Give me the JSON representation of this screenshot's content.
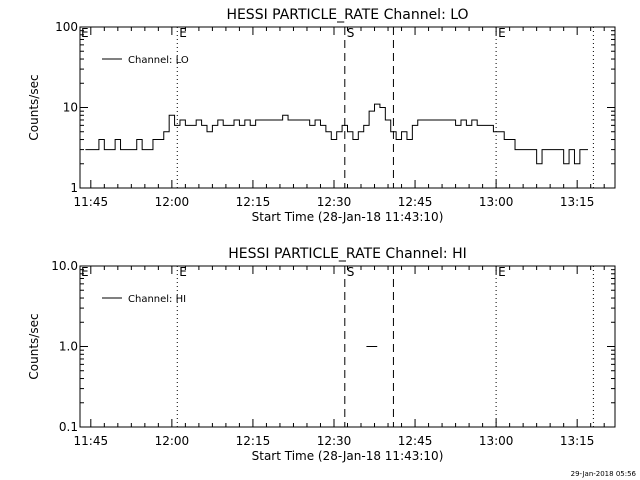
{
  "colors": {
    "background": "#ffffff",
    "ink": "#000000"
  },
  "footer_timestamp": "29-Jan-2018 05:56",
  "chart_data": [
    {
      "type": "line",
      "title": "HESSI PARTICLE_RATE Channel: LO",
      "xlabel": "Start Time (28-Jan-18 11:43:10)",
      "ylabel": "Counts/sec",
      "yscale": "log",
      "ylim": [
        1,
        100
      ],
      "y_ticks": [
        1,
        10,
        100
      ],
      "y_tick_labels": [
        "1",
        "10",
        "100"
      ],
      "xlim": [
        "11:43",
        "13:22"
      ],
      "x_ticks": [
        "11:45",
        "12:00",
        "12:15",
        "12:30",
        "12:45",
        "13:00",
        "13:15"
      ],
      "legend": "top-left",
      "series": [
        {
          "name": "Channel: LO",
          "x": [
            "11:44",
            "11:46",
            "11:47",
            "11:48",
            "11:49",
            "11:50",
            "11:51",
            "11:52",
            "11:53",
            "11:54",
            "11:55",
            "11:56",
            "11:57",
            "11:58",
            "11:59",
            "12:00",
            "12:01",
            "12:02",
            "12:03",
            "12:04",
            "12:05",
            "12:06",
            "12:07",
            "12:08",
            "12:09",
            "12:10",
            "12:11",
            "12:12",
            "12:13",
            "12:14",
            "12:15",
            "12:16",
            "12:17",
            "12:18",
            "12:19",
            "12:20",
            "12:21",
            "12:22",
            "12:23",
            "12:24",
            "12:25",
            "12:26",
            "12:27",
            "12:28",
            "12:29",
            "12:30",
            "12:31",
            "12:32",
            "12:33",
            "12:34",
            "12:35",
            "12:36",
            "12:37",
            "12:38",
            "12:39",
            "12:40",
            "12:41",
            "12:42",
            "12:43",
            "12:44",
            "12:45",
            "12:46",
            "12:47",
            "12:48",
            "12:49",
            "12:50",
            "12:51",
            "12:52",
            "12:53",
            "12:54",
            "12:55",
            "12:56",
            "12:57",
            "12:58",
            "12:59",
            "13:00",
            "13:01",
            "13:02",
            "13:03",
            "13:04",
            "13:05",
            "13:06",
            "13:07",
            "13:08",
            "13:09",
            "13:10",
            "13:11",
            "13:12",
            "13:13",
            "13:14",
            "13:15",
            "13:16",
            "13:17"
          ],
          "y": [
            3,
            3,
            4,
            3,
            3,
            4,
            3,
            3,
            3,
            4,
            3,
            3,
            4,
            4,
            5,
            8,
            6,
            7,
            6,
            6,
            7,
            6,
            5,
            6,
            7,
            6,
            6,
            7,
            6,
            7,
            6,
            7,
            7,
            7,
            7,
            7,
            8,
            7,
            7,
            7,
            7,
            6,
            7,
            6,
            5,
            4,
            5,
            6,
            5,
            4,
            5,
            6,
            9,
            11,
            10,
            7,
            5,
            4,
            5,
            4,
            6,
            7,
            7,
            7,
            7,
            7,
            7,
            7,
            6,
            7,
            6,
            7,
            6,
            6,
            6,
            5,
            5,
            4,
            4,
            3,
            3,
            3,
            3,
            2,
            3,
            3,
            3,
            3,
            2,
            3,
            2,
            3,
            3
          ],
          "color": "#000000"
        }
      ],
      "markers": [
        {
          "time": "12:01",
          "style": "dotted",
          "label": "E"
        },
        {
          "time": "12:32",
          "style": "dashed",
          "label": "S"
        },
        {
          "time": "12:41",
          "style": "dashed",
          "label": ""
        },
        {
          "time": "13:00",
          "style": "dotted",
          "label": "E"
        },
        {
          "time": "13:18",
          "style": "dotted",
          "label": ""
        }
      ],
      "corner_label": "E",
      "grid": false
    },
    {
      "type": "line",
      "title": "HESSI PARTICLE_RATE Channel: HI",
      "xlabel": "Start Time (28-Jan-18 11:43:10)",
      "ylabel": "Counts/sec",
      "yscale": "log",
      "ylim": [
        0.1,
        10
      ],
      "y_ticks": [
        0.1,
        1,
        10
      ],
      "y_tick_labels": [
        "0.1",
        "1.0",
        "10.0"
      ],
      "xlim": [
        "11:43",
        "13:22"
      ],
      "x_ticks": [
        "11:45",
        "12:00",
        "12:15",
        "12:30",
        "12:45",
        "13:00",
        "13:15"
      ],
      "legend": "top-left",
      "series": [
        {
          "name": "Channel: HI",
          "x": [
            "12:36",
            "12:38"
          ],
          "y": [
            1,
            1
          ],
          "color": "#000000"
        }
      ],
      "markers": [
        {
          "time": "12:01",
          "style": "dotted",
          "label": "E"
        },
        {
          "time": "12:32",
          "style": "dashed",
          "label": "S"
        },
        {
          "time": "12:41",
          "style": "dashed",
          "label": ""
        },
        {
          "time": "13:00",
          "style": "dotted",
          "label": "E"
        },
        {
          "time": "13:18",
          "style": "dotted",
          "label": ""
        }
      ],
      "corner_label": "E",
      "grid": false
    }
  ]
}
